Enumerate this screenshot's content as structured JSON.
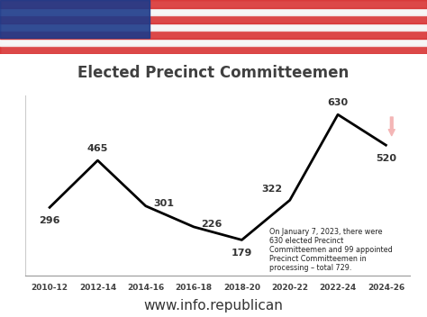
{
  "chart_data": {
    "type": "line",
    "title": "Elected Precinct Committeemen",
    "categories": [
      "2010-12",
      "2012-14",
      "2014-16",
      "2016-18",
      "2018-20",
      "2020-22",
      "2022-24",
      "2024-26"
    ],
    "values": [
      296,
      465,
      301,
      226,
      179,
      322,
      630,
      520
    ],
    "color": "#000000",
    "ylim": [
      50,
      700
    ],
    "data_labels": true,
    "tick_labels": "x",
    "grid": false,
    "annotation": "On January 7, 2023, there were\n630 elected Precinct\nCommitteemen and 99 appointed\nPrecinct Committeemen in\nprocessing – total 729.",
    "footer": "www.info.republican"
  }
}
